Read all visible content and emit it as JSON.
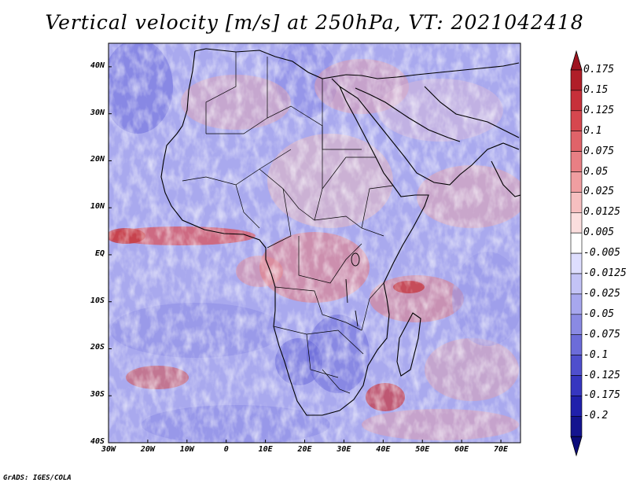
{
  "title": "Vertical velocity [m/s] at 250hPa, VT: 2021042418",
  "credit": "GrADS: IGES/COLA",
  "map": {
    "lat_labels": [
      "40N",
      "30N",
      "20N",
      "10N",
      "EQ",
      "10S",
      "20S",
      "30S",
      "40S"
    ],
    "lat_values": [
      40,
      30,
      20,
      10,
      0,
      -10,
      -20,
      -30,
      -40
    ],
    "lon_labels": [
      "30W",
      "20W",
      "10W",
      "0",
      "10E",
      "20E",
      "30E",
      "40E",
      "50E",
      "60E",
      "70E"
    ],
    "lon_values": [
      -30,
      -20,
      -10,
      0,
      10,
      20,
      30,
      40,
      50,
      60,
      70
    ],
    "lat_range": [
      -40,
      45
    ],
    "lon_range": [
      -30,
      75
    ]
  },
  "colorbar": {
    "labels": [
      "0.175",
      "0.15",
      "0.125",
      "0.1",
      "0.075",
      "0.05",
      "0.025",
      "0.0125",
      "0.005",
      "-0.005",
      "-0.0125",
      "-0.025",
      "-0.05",
      "-0.075",
      "-0.1",
      "-0.125",
      "-0.175",
      "-0.2"
    ],
    "colors": [
      "#b01e28",
      "#c7303a",
      "#d6474f",
      "#e06369",
      "#e87f84",
      "#f09ea1",
      "#f6bfc0",
      "#fbdede",
      "#ffffff",
      "#dedeff",
      "#c3c3f6",
      "#a7a7ee",
      "#8a8ae3",
      "#6c6cd9",
      "#4f4fcd",
      "#3636c0",
      "#2020ab",
      "#14148f"
    ],
    "top_tip_color": "#9e1420",
    "bottom_tip_color": "#0c0c7a"
  }
}
